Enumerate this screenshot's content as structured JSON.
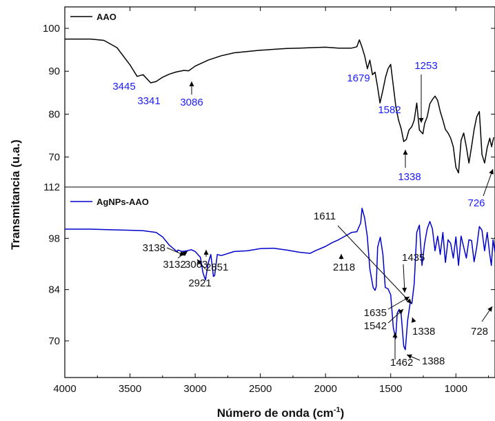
{
  "chart_data": [
    {
      "type": "line",
      "panel": "top",
      "series": [
        {
          "name": "AAO",
          "color": "#000000"
        }
      ],
      "x": [
        4000,
        3800,
        3700,
        3600,
        3500,
        3445,
        3400,
        3341,
        3300,
        3250,
        3200,
        3150,
        3086,
        3050,
        3000,
        2900,
        2800,
        2700,
        2600,
        2500,
        2400,
        2300,
        2200,
        2100,
        2000,
        1900,
        1800,
        1760,
        1740,
        1720,
        1700,
        1679,
        1660,
        1640,
        1620,
        1600,
        1582,
        1560,
        1540,
        1520,
        1500,
        1480,
        1460,
        1440,
        1420,
        1400,
        1380,
        1360,
        1338,
        1320,
        1300,
        1280,
        1253,
        1240,
        1220,
        1200,
        1180,
        1160,
        1140,
        1120,
        1100,
        1080,
        1060,
        1040,
        1020,
        1000,
        980,
        960,
        940,
        920,
        900,
        880,
        860,
        840,
        820,
        800,
        780,
        760,
        740,
        726,
        710
      ],
      "values": [
        97.5,
        97.5,
        97.2,
        95.5,
        91.5,
        88.8,
        89.2,
        87.3,
        87.6,
        88.6,
        89.3,
        89.8,
        90.2,
        90.1,
        91.2,
        92.6,
        93.6,
        94.3,
        94.6,
        94.9,
        95.1,
        95.3,
        95.4,
        95.5,
        95.6,
        95.4,
        95.4,
        95.7,
        97.3,
        95.6,
        93.6,
        90.6,
        92.6,
        89.2,
        89.8,
        86.2,
        82.6,
        85.6,
        88.6,
        90.6,
        91.6,
        86.6,
        81.6,
        78.6,
        76.6,
        73.6,
        74.1,
        76.3,
        77.1,
        78.6,
        82.6,
        76.3,
        75.4,
        77.8,
        79.4,
        82.4,
        83.4,
        84.2,
        83.2,
        80.6,
        78.6,
        76.4,
        75.6,
        74.4,
        72.4,
        67.6,
        66.3,
        73.9,
        75.6,
        72.4,
        68.6,
        72.4,
        76.4,
        79.4,
        80.6,
        70.6,
        68.6,
        72.2,
        74.4,
        72.4,
        74.6
      ]
    },
    {
      "type": "line",
      "panel": "bottom",
      "series": [
        {
          "name": "AgNPs-AAO",
          "color": "#0000cc"
        }
      ],
      "x": [
        4000,
        3800,
        3700,
        3600,
        3500,
        3400,
        3300,
        3250,
        3200,
        3150,
        3138,
        3132,
        3100,
        3063,
        3030,
        3000,
        2960,
        2940,
        2921,
        2900,
        2880,
        2860,
        2851,
        2830,
        2800,
        2700,
        2600,
        2500,
        2400,
        2300,
        2200,
        2150,
        2118,
        2080,
        2000,
        1950,
        1900,
        1850,
        1800,
        1760,
        1730,
        1720,
        1700,
        1680,
        1660,
        1635,
        1620,
        1611,
        1600,
        1580,
        1560,
        1542,
        1520,
        1500,
        1480,
        1462,
        1450,
        1435,
        1420,
        1400,
        1388,
        1370,
        1350,
        1338,
        1320,
        1300,
        1280,
        1260,
        1240,
        1220,
        1200,
        1180,
        1160,
        1140,
        1120,
        1100,
        1080,
        1060,
        1040,
        1020,
        1000,
        980,
        960,
        940,
        920,
        900,
        880,
        860,
        840,
        820,
        800,
        780,
        760,
        740,
        728,
        715,
        700
      ],
      "values": [
        100.5,
        100.5,
        100.4,
        100.3,
        100.2,
        100.1,
        99.6,
        98.4,
        96.2,
        94.7,
        94.3,
        94.8,
        94.4,
        94.6,
        94.9,
        94.4,
        92.8,
        88.6,
        86.6,
        91.2,
        93.6,
        87.6,
        87.8,
        93.6,
        93.3,
        94.4,
        94.6,
        95.2,
        95.3,
        94.8,
        94.2,
        94.0,
        93.9,
        94.6,
        95.8,
        96.8,
        97.6,
        98.6,
        99.6,
        99.8,
        102.2,
        106.2,
        103.6,
        98.6,
        89.6,
        84.6,
        83.8,
        84.8,
        95.6,
        98.3,
        93.6,
        84.6,
        84.2,
        82.6,
        73.6,
        70.6,
        77.6,
        78.6,
        77.2,
        68.6,
        67.6,
        75.6,
        80.6,
        80.2,
        85.6,
        99.6,
        101.6,
        90.6,
        96.6,
        100.6,
        102.6,
        100.6,
        94.6,
        98.6,
        93.6,
        99.6,
        91.4,
        97.6,
        96.6,
        92.6,
        98.4,
        90.6,
        98.6,
        95.6,
        92.6,
        97.6,
        97.4,
        91.6,
        95.6,
        101.2,
        100.2,
        94.6,
        99.6,
        93.6,
        90.6,
        97.6,
        94.2
      ]
    }
  ],
  "axes": {
    "xlabel": "Número de onda (cm",
    "xlabel_sup": "-1",
    "xlabel_tail": ")",
    "ylabel": "Transmitancia (u.a.)",
    "xlim": [
      4000,
      700
    ],
    "x_ticks": [
      "4000",
      "3500",
      "3000",
      "2500",
      "2000",
      "1500",
      "1000"
    ],
    "top_ylim": [
      63,
      105
    ],
    "top_y_ticks": [
      "70",
      "80",
      "90",
      "100"
    ],
    "bottom_ylim": [
      60,
      112
    ],
    "bottom_y_ticks": [
      "70",
      "84",
      "98",
      "112"
    ]
  },
  "legend": {
    "top": "AAO",
    "bottom": "AgNPs-AAO"
  },
  "annotations": {
    "top": [
      "3445",
      "3341",
      "3086",
      "1679",
      "1582",
      "1253",
      "1338",
      "726"
    ],
    "bottom": [
      "3138",
      "3132",
      "3063",
      "2921",
      "2851",
      "2118",
      "1611",
      "1635",
      "1542",
      "1435",
      "1462",
      "1388",
      "1338",
      "728"
    ]
  },
  "colors": {
    "top_series": "#000000",
    "top_annotation": "#1a1aff",
    "bottom_series": "#0000cc",
    "bottom_annotation": "#111111",
    "axis": "#000000"
  }
}
